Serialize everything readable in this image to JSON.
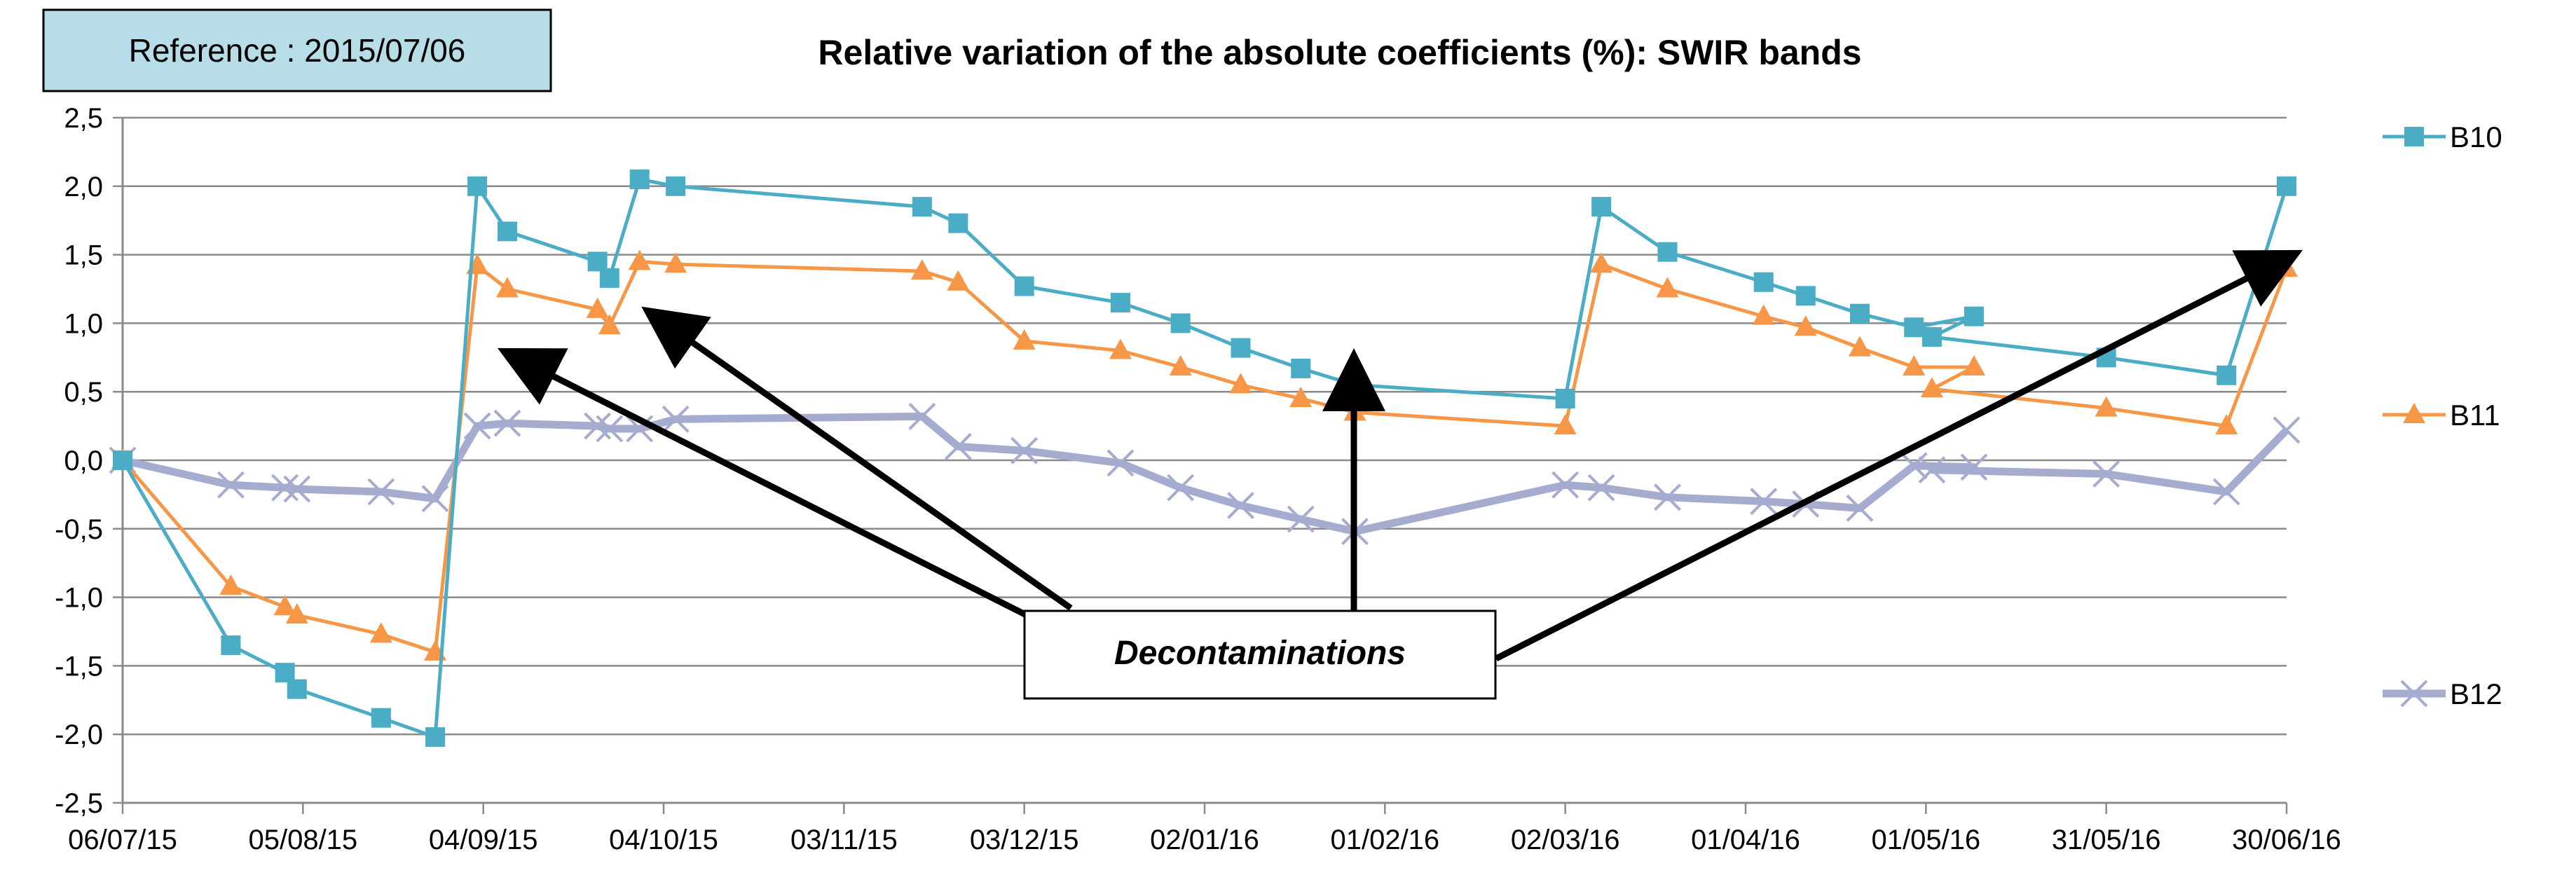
{
  "chart_data": {
    "type": "line",
    "title": "Relative variation of the absolute coefficients (%): SWIR bands",
    "reference_label": "Reference :  2015/07/06",
    "annotation": "Decontaminations",
    "xlabel": "",
    "ylabel": "",
    "x_ticks": [
      "06/07/15",
      "05/08/15",
      "04/09/15",
      "04/10/15",
      "03/11/15",
      "03/12/15",
      "02/01/16",
      "01/02/16",
      "02/03/16",
      "01/04/16",
      "01/05/16",
      "31/05/16",
      "30/06/16"
    ],
    "y_ticks": [
      "2,5",
      "2,0",
      "1,5",
      "1,0",
      "0,5",
      "0,0",
      "-0,5",
      "-1,0",
      "-1,5",
      "-2,0",
      "-2,5"
    ],
    "x_range_days": [
      0,
      360
    ],
    "ylim": [
      -2.5,
      2.5
    ],
    "grid": "horizontal",
    "legend_position": "right",
    "series": [
      {
        "name": "B10",
        "color": "#4bacc6",
        "marker": "square",
        "x_days": [
          0,
          18,
          27,
          29,
          43,
          52,
          59,
          64,
          79,
          81,
          86,
          92,
          133,
          139,
          150,
          166,
          176,
          186,
          196,
          205,
          240,
          246,
          257,
          273,
          280,
          289,
          298,
          308,
          301,
          330,
          350,
          360
        ],
        "values": [
          0,
          -1.35,
          -1.55,
          -1.67,
          -1.88,
          -2.02,
          2.0,
          1.67,
          1.45,
          1.33,
          2.05,
          2.0,
          1.85,
          1.73,
          1.27,
          1.15,
          1.0,
          0.82,
          0.67,
          0.55,
          0.45,
          1.85,
          1.52,
          1.3,
          1.2,
          1.07,
          0.97,
          1.05,
          0.9,
          0.75,
          0.62,
          2.0
        ]
      },
      {
        "name": "B11",
        "color": "#f79646",
        "marker": "triangle",
        "x_days": [
          0,
          18,
          27,
          29,
          43,
          52,
          59,
          64,
          79,
          81,
          86,
          92,
          133,
          139,
          150,
          166,
          176,
          186,
          196,
          205,
          240,
          246,
          257,
          273,
          280,
          289,
          298,
          308,
          301,
          330,
          350,
          360
        ],
        "values": [
          0,
          -0.92,
          -1.07,
          -1.13,
          -1.27,
          -1.4,
          1.42,
          1.25,
          1.1,
          0.98,
          1.45,
          1.43,
          1.38,
          1.3,
          0.87,
          0.8,
          0.68,
          0.55,
          0.45,
          0.35,
          0.25,
          1.43,
          1.25,
          1.05,
          0.97,
          0.82,
          0.68,
          0.68,
          0.52,
          0.38,
          0.25,
          1.4
        ]
      },
      {
        "name": "B12",
        "color": "#a6abd0",
        "marker": "x",
        "x_days": [
          0,
          18,
          27,
          29,
          43,
          52,
          59,
          64,
          79,
          81,
          86,
          92,
          133,
          139,
          150,
          166,
          176,
          186,
          196,
          205,
          240,
          246,
          257,
          273,
          280,
          289,
          298,
          308,
          301,
          330,
          350,
          360
        ],
        "values": [
          0,
          -0.18,
          -0.2,
          -0.21,
          -0.23,
          -0.28,
          0.25,
          0.27,
          0.25,
          0.23,
          0.23,
          0.3,
          0.32,
          0.1,
          0.07,
          -0.02,
          -0.2,
          -0.33,
          -0.43,
          -0.52,
          -0.18,
          -0.2,
          -0.27,
          -0.3,
          -0.32,
          -0.35,
          -0.04,
          -0.05,
          -0.07,
          -0.1,
          -0.23,
          0.22
        ]
      }
    ]
  }
}
